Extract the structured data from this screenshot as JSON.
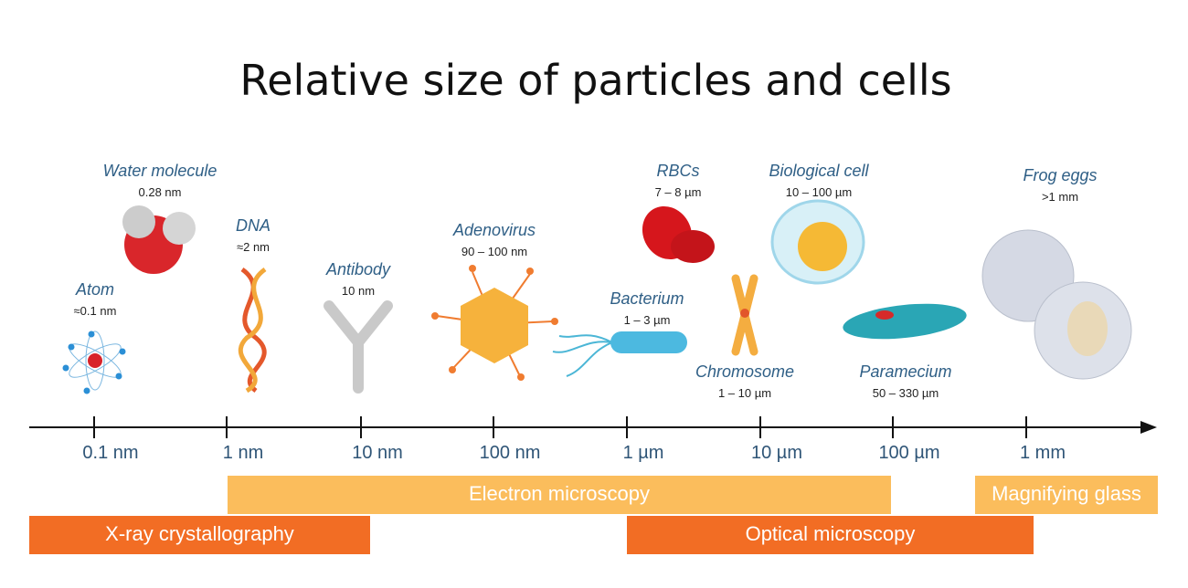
{
  "title": "Relative size of particles and cells",
  "items": [
    {
      "name": "Atom",
      "size": "≈0.1 nm"
    },
    {
      "name": "Water molecule",
      "size": "0.28 nm"
    },
    {
      "name": "DNA",
      "size": "≈2 nm"
    },
    {
      "name": "Antibody",
      "size": "10 nm"
    },
    {
      "name": "Adenovirus",
      "size": "90 – 100 nm"
    },
    {
      "name": "RBCs",
      "size": "7 – 8 µm"
    },
    {
      "name": "Bacterium",
      "size": "1 – 3 µm"
    },
    {
      "name": "Biological cell",
      "size": "10 – 100 µm"
    },
    {
      "name": "Chromosome",
      "size": "1 – 10 µm"
    },
    {
      "name": "Paramecium",
      "size": "50 – 330 µm"
    },
    {
      "name": "Frog eggs",
      "size": ">1 mm"
    }
  ],
  "axis_labels": [
    "0.1 nm",
    "1 nm",
    "10 nm",
    "100 nm",
    "1 µm",
    "10 µm",
    "100 µm",
    "1 mm"
  ],
  "methods": [
    "Electron microscopy",
    "Magnifying glass",
    "X-ray crystallography",
    "Optical microscopy"
  ]
}
